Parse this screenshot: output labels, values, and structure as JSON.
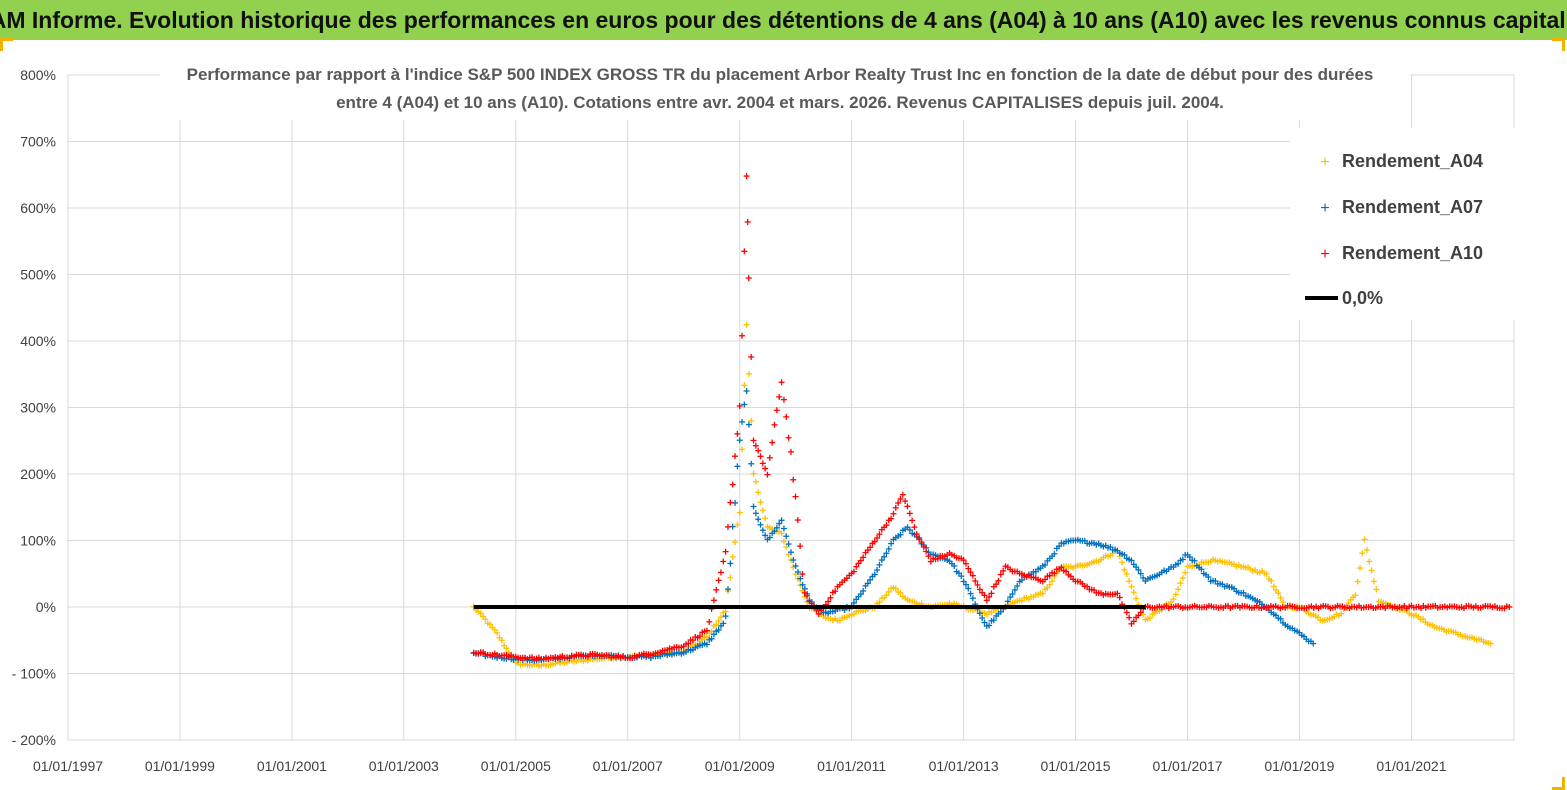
{
  "banner": {
    "title": "ADAM Informe. Evolution historique des performances en euros pour des détentions de 4 ans (A04) à 10 ans (A10) avec les revenus connus capitalisés"
  },
  "colors": {
    "banner": "#92d050",
    "A04": "#ffc000",
    "A07": "#0070c0",
    "A10": "#ff0000",
    "zero": "#000000",
    "grid": "#d9d9d9"
  },
  "chart_data": {
    "type": "scatter",
    "title_lines": [
      "Performance par rapport à l'indice S&P 500 INDEX GROSS TR  du placement Arbor Realty Trust Inc en fonction de la date de début pour des durées",
      "entre 4 (A04) et 10 ans (A10). Cotations entre avr. 2004 et mars. 2026. Revenus CAPITALISES depuis juil. 2004."
    ],
    "x_axis": {
      "type": "date",
      "range": [
        "1997-01-01",
        "2022-11-01"
      ],
      "ticks": [
        "01/01/1997",
        "01/01/1999",
        "01/01/2001",
        "01/01/2003",
        "01/01/2005",
        "01/01/2007",
        "01/01/2009",
        "01/01/2011",
        "01/01/2013",
        "01/01/2015",
        "01/01/2017",
        "01/01/2019",
        "01/01/2021"
      ]
    },
    "y_axis": {
      "unit": "%",
      "range": [
        -200,
        800
      ],
      "ticks": [
        "- 200%",
        "- 100%",
        "0%",
        "100%",
        "200%",
        "300%",
        "400%",
        "500%",
        "600%",
        "700%",
        "800%"
      ]
    },
    "grid": true,
    "legend_position": "top-right",
    "series": [
      {
        "name": "Rendement_A04",
        "marker": "+",
        "color": "#ffc000",
        "points": [
          [
            "2004-04-01",
            0
          ],
          [
            "2004-06-01",
            -15
          ],
          [
            "2004-09-01",
            -40
          ],
          [
            "2005-01-01",
            -85
          ],
          [
            "2005-06-01",
            -88
          ],
          [
            "2006-01-01",
            -82
          ],
          [
            "2006-06-01",
            -78
          ],
          [
            "2007-01-01",
            -75
          ],
          [
            "2007-06-01",
            -72
          ],
          [
            "2008-01-01",
            -68
          ],
          [
            "2008-06-01",
            -45
          ],
          [
            "2008-10-01",
            -5
          ],
          [
            "2009-01-01",
            150
          ],
          [
            "2009-02-15",
            420
          ],
          [
            "2009-04-01",
            200
          ],
          [
            "2009-07-01",
            120
          ],
          [
            "2009-10-01",
            110
          ],
          [
            "2010-01-01",
            50
          ],
          [
            "2010-04-01",
            0
          ],
          [
            "2010-07-01",
            -15
          ],
          [
            "2010-10-01",
            -20
          ],
          [
            "2011-01-01",
            -10
          ],
          [
            "2011-06-01",
            0
          ],
          [
            "2011-10-01",
            30
          ],
          [
            "2012-01-01",
            10
          ],
          [
            "2012-06-01",
            0
          ],
          [
            "2012-10-01",
            5
          ],
          [
            "2013-01-01",
            0
          ],
          [
            "2013-06-01",
            -10
          ],
          [
            "2013-10-01",
            0
          ],
          [
            "2014-01-01",
            10
          ],
          [
            "2014-06-01",
            20
          ],
          [
            "2014-10-01",
            60
          ],
          [
            "2015-01-01",
            60
          ],
          [
            "2015-06-01",
            70
          ],
          [
            "2015-10-01",
            85
          ],
          [
            "2016-01-01",
            30
          ],
          [
            "2016-04-01",
            -20
          ],
          [
            "2016-10-01",
            10
          ],
          [
            "2017-01-01",
            60
          ],
          [
            "2017-06-01",
            70
          ],
          [
            "2017-10-01",
            65
          ],
          [
            "2018-01-01",
            60
          ],
          [
            "2018-06-01",
            50
          ],
          [
            "2018-10-01",
            0
          ],
          [
            "2019-01-01",
            0
          ],
          [
            "2019-06-01",
            -20
          ],
          [
            "2019-10-01",
            -10
          ],
          [
            "2020-01-01",
            20
          ],
          [
            "2020-03-01",
            100
          ],
          [
            "2020-06-01",
            10
          ],
          [
            "2021-01-01",
            -10
          ],
          [
            "2021-06-01",
            -30
          ],
          [
            "2022-01-01",
            -45
          ],
          [
            "2022-06-01",
            -55
          ]
        ]
      },
      {
        "name": "Rendement_A07",
        "marker": "+",
        "color": "#0070c0",
        "points": [
          [
            "2004-04-01",
            -70
          ],
          [
            "2004-09-01",
            -75
          ],
          [
            "2005-01-01",
            -78
          ],
          [
            "2005-06-01",
            -80
          ],
          [
            "2006-01-01",
            -75
          ],
          [
            "2006-06-01",
            -72
          ],
          [
            "2007-01-01",
            -75
          ],
          [
            "2007-06-01",
            -75
          ],
          [
            "2008-01-01",
            -68
          ],
          [
            "2008-06-01",
            -55
          ],
          [
            "2008-10-01",
            -20
          ],
          [
            "2009-01-01",
            250
          ],
          [
            "2009-02-15",
            330
          ],
          [
            "2009-04-01",
            150
          ],
          [
            "2009-07-01",
            100
          ],
          [
            "2009-10-01",
            130
          ],
          [
            "2010-01-01",
            60
          ],
          [
            "2010-04-01",
            10
          ],
          [
            "2010-07-01",
            -10
          ],
          [
            "2010-10-01",
            -5
          ],
          [
            "2011-01-01",
            0
          ],
          [
            "2011-06-01",
            50
          ],
          [
            "2011-10-01",
            100
          ],
          [
            "2012-01-01",
            120
          ],
          [
            "2012-06-01",
            80
          ],
          [
            "2012-10-01",
            70
          ],
          [
            "2013-01-01",
            40
          ],
          [
            "2013-06-01",
            -30
          ],
          [
            "2013-10-01",
            0
          ],
          [
            "2014-01-01",
            40
          ],
          [
            "2014-06-01",
            60
          ],
          [
            "2014-10-01",
            95
          ],
          [
            "2015-01-01",
            100
          ],
          [
            "2015-06-01",
            95
          ],
          [
            "2015-10-01",
            85
          ],
          [
            "2016-01-01",
            70
          ],
          [
            "2016-04-01",
            40
          ],
          [
            "2016-10-01",
            60
          ],
          [
            "2017-01-01",
            80
          ],
          [
            "2017-06-01",
            40
          ],
          [
            "2017-10-01",
            30
          ],
          [
            "2018-01-01",
            20
          ],
          [
            "2018-06-01",
            0
          ],
          [
            "2018-10-01",
            -25
          ],
          [
            "2019-01-01",
            -40
          ],
          [
            "2019-04-01",
            -55
          ]
        ]
      },
      {
        "name": "Rendement_A10",
        "marker": "+",
        "color": "#ff0000",
        "points": [
          [
            "2004-04-01",
            -68
          ],
          [
            "2004-09-01",
            -72
          ],
          [
            "2005-01-01",
            -75
          ],
          [
            "2005-06-01",
            -78
          ],
          [
            "2006-01-01",
            -74
          ],
          [
            "2006-06-01",
            -72
          ],
          [
            "2007-01-01",
            -76
          ],
          [
            "2007-06-01",
            -70
          ],
          [
            "2008-01-01",
            -58
          ],
          [
            "2008-06-01",
            -35
          ],
          [
            "2008-10-01",
            80
          ],
          [
            "2009-01-01",
            300
          ],
          [
            "2009-02-15",
            650
          ],
          [
            "2009-03-01",
            500
          ],
          [
            "2009-04-01",
            250
          ],
          [
            "2009-07-01",
            200
          ],
          [
            "2009-10-01",
            340
          ],
          [
            "2009-12-01",
            230
          ],
          [
            "2010-03-01",
            20
          ],
          [
            "2010-06-01",
            -10
          ],
          [
            "2010-10-01",
            30
          ],
          [
            "2011-01-01",
            50
          ],
          [
            "2011-06-01",
            100
          ],
          [
            "2011-10-01",
            140
          ],
          [
            "2011-12-01",
            170
          ],
          [
            "2012-03-01",
            110
          ],
          [
            "2012-06-01",
            70
          ],
          [
            "2012-10-01",
            80
          ],
          [
            "2013-01-01",
            70
          ],
          [
            "2013-06-01",
            10
          ],
          [
            "2013-10-01",
            60
          ],
          [
            "2014-01-01",
            50
          ],
          [
            "2014-06-01",
            40
          ],
          [
            "2014-10-01",
            60
          ],
          [
            "2015-01-01",
            40
          ],
          [
            "2015-06-01",
            20
          ],
          [
            "2015-10-01",
            20
          ],
          [
            "2016-01-01",
            -25
          ],
          [
            "2016-04-01",
            0
          ],
          [
            "2017-01-01",
            0
          ],
          [
            "2019-01-01",
            0
          ],
          [
            "2021-01-01",
            0
          ],
          [
            "2022-10-01",
            0
          ]
        ]
      },
      {
        "name": "0,0%",
        "type": "line",
        "color": "#000000",
        "points": [
          [
            "2004-04-01",
            0
          ],
          [
            "2016-04-01",
            0
          ]
        ]
      }
    ]
  }
}
